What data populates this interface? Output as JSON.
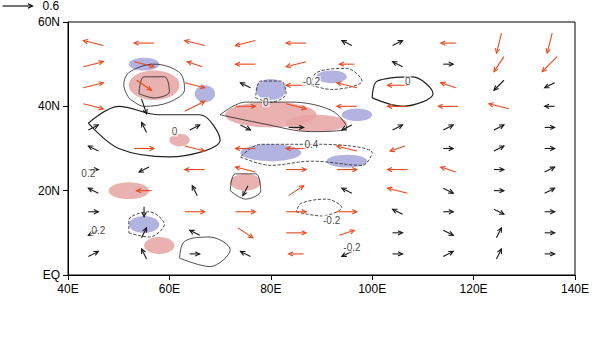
{
  "chart_data": {
    "type": "vector",
    "xlim": [
      40,
      140
    ],
    "xticks": [
      {
        "value": 40,
        "label": "40E"
      },
      {
        "value": 60,
        "label": "60E"
      },
      {
        "value": 80,
        "label": "80E"
      },
      {
        "value": 100,
        "label": "100E"
      },
      {
        "value": 120,
        "label": "120E"
      },
      {
        "value": 140,
        "label": "140E"
      }
    ],
    "ylim": [
      0,
      60
    ],
    "yticks": [
      {
        "value": 0,
        "label": "EQ"
      },
      {
        "value": 20,
        "label": "20N"
      },
      {
        "value": 40,
        "label": "40N"
      },
      {
        "value": 60,
        "label": "60N"
      }
    ],
    "grid": false,
    "reference_vector": 0.6,
    "shading": [
      {
        "color": "#e6a3a3",
        "areas": [
          [
            57,
            45,
            5,
            3.5
          ],
          [
            80,
            38,
            9,
            3
          ],
          [
            89,
            36,
            6,
            2
          ],
          [
            75,
            22,
            3,
            2
          ],
          [
            52,
            20,
            4,
            2
          ],
          [
            58,
            7,
            3,
            2
          ],
          [
            62,
            32,
            2,
            1.5
          ]
        ]
      },
      {
        "color": "#a6a6dc",
        "areas": [
          [
            55,
            50,
            3,
            1.5
          ],
          [
            67,
            43,
            2,
            2
          ],
          [
            80,
            44,
            3,
            2.5
          ],
          [
            97,
            38,
            3,
            1.5
          ],
          [
            92,
            47,
            3,
            1.5
          ],
          [
            80,
            29,
            6,
            2
          ],
          [
            95,
            27,
            4,
            1.5
          ],
          [
            55,
            12,
            3,
            2
          ]
        ]
      }
    ],
    "contours": [
      {
        "level": 0.2,
        "points": [
          [
            52,
            42
          ],
          [
            55,
            40
          ],
          [
            60,
            41
          ],
          [
            63,
            44
          ],
          [
            62,
            48
          ],
          [
            57,
            50
          ],
          [
            52,
            48
          ],
          [
            51,
            45
          ],
          [
            52,
            42
          ]
        ]
      },
      {
        "level": 0.4,
        "points": [
          [
            54,
            43
          ],
          [
            57,
            42
          ],
          [
            60,
            43.5
          ],
          [
            59,
            47
          ],
          [
            55,
            47
          ],
          [
            54,
            43
          ]
        ]
      },
      {
        "level": 0.2,
        "points": [
          [
            70,
            38
          ],
          [
            78,
            36
          ],
          [
            88,
            34
          ],
          [
            95,
            35
          ],
          [
            92,
            39
          ],
          [
            84,
            41
          ],
          [
            75,
            41
          ],
          [
            70,
            38
          ]
        ]
      },
      {
        "level": -0.2,
        "points": [
          [
            74,
            28
          ],
          [
            80,
            26
          ],
          [
            88,
            27
          ],
          [
            98,
            26
          ],
          [
            100,
            29
          ],
          [
            90,
            31
          ],
          [
            78,
            31
          ],
          [
            74,
            28
          ]
        ]
      },
      {
        "level": -0.2,
        "points": [
          [
            77,
            42
          ],
          [
            80,
            41
          ],
          [
            83,
            43
          ],
          [
            82,
            46
          ],
          [
            78,
            46
          ],
          [
            77,
            42
          ]
        ]
      },
      {
        "level": 0,
        "points": [
          [
            44,
            36
          ],
          [
            50,
            30
          ],
          [
            60,
            28
          ],
          [
            70,
            32
          ],
          [
            66,
            38
          ],
          [
            58,
            38
          ],
          [
            50,
            40
          ],
          [
            44,
            36
          ]
        ]
      },
      {
        "level": -0.2,
        "points": [
          [
            88,
            45
          ],
          [
            92,
            44
          ],
          [
            98,
            46
          ],
          [
            95,
            49
          ],
          [
            89,
            48
          ],
          [
            88,
            45
          ]
        ]
      },
      {
        "level": 0.2,
        "points": [
          [
            72,
            20
          ],
          [
            75,
            18
          ],
          [
            78,
            20
          ],
          [
            77,
            24
          ],
          [
            73,
            24
          ],
          [
            72,
            20
          ]
        ]
      },
      {
        "level": -0.2,
        "points": [
          [
            52,
            10
          ],
          [
            56,
            9
          ],
          [
            59,
            12
          ],
          [
            56,
            15
          ],
          [
            52,
            13
          ],
          [
            52,
            10
          ]
        ]
      },
      {
        "level": -0.2,
        "points": [
          [
            85,
            15
          ],
          [
            90,
            14
          ],
          [
            94,
            16
          ],
          [
            91,
            18
          ],
          [
            86,
            17
          ],
          [
            85,
            15
          ]
        ]
      },
      {
        "level": 0,
        "points": [
          [
            100,
            42
          ],
          [
            106,
            40
          ],
          [
            112,
            43
          ],
          [
            108,
            47
          ],
          [
            101,
            46
          ],
          [
            100,
            42
          ]
        ]
      },
      {
        "level": 0.2,
        "points": [
          [
            62,
            4
          ],
          [
            68,
            2
          ],
          [
            72,
            6
          ],
          [
            68,
            9
          ],
          [
            63,
            8
          ],
          [
            62,
            4
          ]
        ]
      }
    ],
    "contour_labels": [
      {
        "x": 79,
        "y": 41,
        "value": 0
      },
      {
        "x": 107,
        "y": 46,
        "value": 0
      },
      {
        "x": 88,
        "y": 46,
        "value": -0.2
      },
      {
        "x": 88,
        "y": 31,
        "value": 0.4
      },
      {
        "x": 44,
        "y": 24,
        "value": 0.2
      },
      {
        "x": 46,
        "y": 10.5,
        "value": 0.2
      },
      {
        "x": 92,
        "y": 13,
        "value": -0.2
      },
      {
        "x": 96,
        "y": 6.5,
        "value": -0.2
      },
      {
        "x": 61,
        "y": 34,
        "value": 0
      }
    ],
    "vectors": [
      {
        "color": "#e8491d",
        "data": [
          [
            45,
            55,
            -0.4,
            0.1
          ],
          [
            55,
            55,
            -0.4,
            0
          ],
          [
            65,
            55,
            -0.4,
            0.1
          ],
          [
            75,
            55,
            -0.4,
            -0.1
          ],
          [
            85,
            55,
            -0.4,
            0
          ],
          [
            115,
            55,
            -0.3,
            0
          ],
          [
            125,
            55,
            -0.1,
            -0.4
          ],
          [
            135,
            55,
            -0.1,
            -0.4
          ],
          [
            45,
            50,
            0.4,
            0.1
          ],
          [
            55,
            50,
            0.4,
            -0.1
          ],
          [
            65,
            50,
            -0.3,
            0.1
          ],
          [
            75,
            50,
            -0.4,
            0
          ],
          [
            85,
            50,
            -0.4,
            -0.1
          ],
          [
            95,
            50,
            -0.3,
            0
          ],
          [
            125,
            50,
            -0.2,
            -0.3
          ],
          [
            135,
            50,
            -0.3,
            -0.3
          ],
          [
            45,
            45,
            0.4,
            0.1
          ],
          [
            55,
            45,
            0.3,
            -0.2
          ],
          [
            65,
            45,
            0.4,
            -0.1
          ],
          [
            85,
            45,
            -0.4,
            0
          ],
          [
            95,
            45,
            -0.4,
            0.1
          ],
          [
            105,
            45,
            -0.4,
            0
          ],
          [
            115,
            45,
            -0.3,
            0.1
          ],
          [
            45,
            40,
            0.4,
            -0.1
          ],
          [
            65,
            40,
            0.4,
            0.2
          ],
          [
            75,
            40,
            0.4,
            0
          ],
          [
            85,
            40,
            0.4,
            -0.1
          ],
          [
            95,
            40,
            -0.4,
            0
          ],
          [
            105,
            40,
            -0.4,
            0
          ],
          [
            115,
            40,
            -0.4,
            0
          ],
          [
            125,
            40,
            -0.4,
            0.1
          ],
          [
            55,
            30,
            0.4,
            0
          ],
          [
            65,
            30,
            0.4,
            -0.1
          ],
          [
            75,
            30,
            -0.4,
            0
          ],
          [
            85,
            30,
            -0.4,
            0
          ],
          [
            95,
            30,
            -0.4,
            0.1
          ],
          [
            105,
            30,
            -0.3,
            -0.1
          ],
          [
            65,
            25,
            -0.4,
            0
          ],
          [
            75,
            25,
            -0.4,
            0.1
          ],
          [
            85,
            25,
            0.4,
            0
          ],
          [
            95,
            25,
            0.4,
            0
          ],
          [
            105,
            25,
            -0.4,
            0
          ],
          [
            115,
            25,
            -0.3,
            0.1
          ],
          [
            55,
            20,
            -0.3,
            0
          ],
          [
            85,
            20,
            0.3,
            0.2
          ],
          [
            105,
            20,
            -0.4,
            0.1
          ],
          [
            65,
            15,
            0.4,
            0
          ],
          [
            75,
            15,
            0.4,
            0
          ],
          [
            85,
            15,
            0.4,
            0
          ],
          [
            95,
            15,
            0.4,
            0
          ],
          [
            75,
            10,
            0.3,
            -0.2
          ],
          [
            85,
            10,
            0.4,
            0
          ],
          [
            95,
            10,
            0.3,
            0.1
          ],
          [
            85,
            5,
            -0.3,
            0
          ]
        ]
      },
      {
        "color": "#1a1a1a",
        "data": [
          [
            95,
            55,
            -0.2,
            0.1
          ],
          [
            105,
            55,
            0.2,
            0.1
          ],
          [
            105,
            50,
            -0.2,
            0.1
          ],
          [
            115,
            50,
            0.2,
            0
          ],
          [
            75,
            45,
            -0.2,
            0.1
          ],
          [
            125,
            45,
            -0.2,
            -0.2
          ],
          [
            135,
            45,
            -0.2,
            -0.1
          ],
          [
            55,
            40,
            0.1,
            -0.3
          ],
          [
            135,
            40,
            -0.2,
            0
          ],
          [
            45,
            35,
            0.2,
            0.1
          ],
          [
            55,
            35,
            -0.1,
            0.2
          ],
          [
            65,
            35,
            0.2,
            0.1
          ],
          [
            75,
            35,
            0.2,
            -0.1
          ],
          [
            85,
            35,
            0.3,
            0
          ],
          [
            95,
            35,
            -0.2,
            -0.1
          ],
          [
            105,
            35,
            0.2,
            0.1
          ],
          [
            115,
            35,
            0.2,
            0.1
          ],
          [
            125,
            35,
            0.2,
            0.1
          ],
          [
            135,
            35,
            0.2,
            0
          ],
          [
            45,
            30,
            -0.2,
            0.1
          ],
          [
            115,
            30,
            0.2,
            0
          ],
          [
            125,
            30,
            0.2,
            0.1
          ],
          [
            135,
            30,
            0.2,
            0
          ],
          [
            45,
            25,
            0.2,
            0
          ],
          [
            55,
            25,
            -0.2,
            -0.1
          ],
          [
            125,
            25,
            0.2,
            0
          ],
          [
            135,
            25,
            0.2,
            0.1
          ],
          [
            45,
            20,
            -0.2,
            0.1
          ],
          [
            65,
            20,
            -0.1,
            0.2
          ],
          [
            75,
            20,
            -0.1,
            -0.2
          ],
          [
            95,
            20,
            -0.2,
            0.1
          ],
          [
            115,
            20,
            0.2,
            -0.1
          ],
          [
            125,
            20,
            0.2,
            0
          ],
          [
            135,
            20,
            0.2,
            0.1
          ],
          [
            45,
            15,
            0.2,
            0
          ],
          [
            55,
            15,
            0,
            -0.2
          ],
          [
            105,
            15,
            -0.2,
            0.1
          ],
          [
            115,
            15,
            0.2,
            0
          ],
          [
            125,
            15,
            0.2,
            -0.1
          ],
          [
            135,
            15,
            0.2,
            0
          ],
          [
            45,
            10,
            -0.2,
            -0.1
          ],
          [
            55,
            10,
            0.1,
            0.2
          ],
          [
            65,
            10,
            -0.2,
            0.1
          ],
          [
            105,
            10,
            0.2,
            0
          ],
          [
            115,
            10,
            0.2,
            -0.1
          ],
          [
            125,
            10,
            0.1,
            0.2
          ],
          [
            135,
            10,
            0.2,
            0
          ],
          [
            45,
            5,
            0.2,
            0.1
          ],
          [
            55,
            5,
            -0.1,
            0.2
          ],
          [
            65,
            5,
            0.2,
            0
          ],
          [
            75,
            5,
            -0.2,
            0.1
          ],
          [
            95,
            5,
            -0.2,
            -0.1
          ],
          [
            105,
            5,
            0.2,
            0
          ],
          [
            115,
            5,
            0.2,
            0.1
          ],
          [
            125,
            5,
            0.1,
            0.2
          ],
          [
            135,
            5,
            0.2,
            0
          ]
        ]
      }
    ]
  }
}
